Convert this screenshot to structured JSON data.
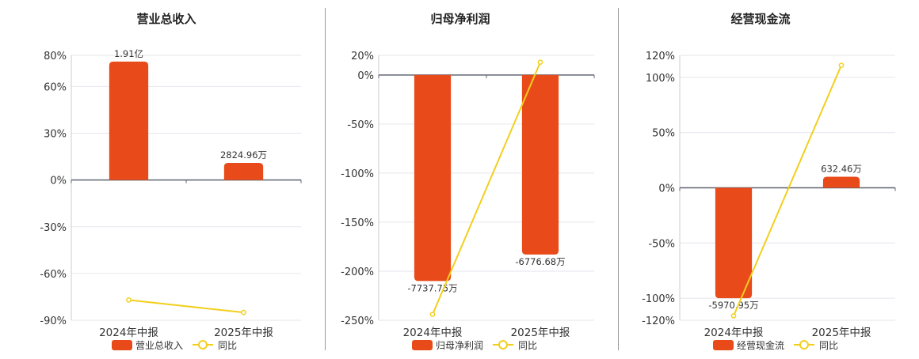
{
  "colors": {
    "bar": "#E84A1A",
    "line": "#F2CF1E",
    "axis": "#5F6470",
    "grid": "#E6E6EE",
    "text": "#333333",
    "divider": "#999999"
  },
  "chart_data": [
    {
      "type": "bar",
      "title": "营业总收入",
      "categories": [
        "2024年中报",
        "2025年中报"
      ],
      "yticks": [
        "80%",
        "60%",
        "30%",
        "0%",
        "-30%",
        "-60%",
        "-90%"
      ],
      "ylim": [
        -90,
        80
      ],
      "series": [
        {
          "name": "营业总收入",
          "type": "bar",
          "values": [
            76,
            11
          ],
          "labels": [
            "1.91亿",
            "2824.96万"
          ]
        },
        {
          "name": "同比",
          "type": "line",
          "values": [
            -77,
            -85
          ]
        }
      ],
      "legend": "bottom"
    },
    {
      "type": "bar",
      "title": "归母净利润",
      "categories": [
        "2024年中报",
        "2025年中报"
      ],
      "yticks": [
        "20%",
        "0%",
        "-50%",
        "-100%",
        "-150%",
        "-200%",
        "-250%"
      ],
      "ylim": [
        -250,
        20
      ],
      "series": [
        {
          "name": "归母净利润",
          "type": "bar",
          "values": [
            -210,
            -183
          ],
          "labels": [
            "-7737.75万",
            "-6776.68万"
          ]
        },
        {
          "name": "同比",
          "type": "line",
          "values": [
            -244,
            13
          ]
        }
      ],
      "legend": "bottom"
    },
    {
      "type": "bar",
      "title": "经营现金流",
      "categories": [
        "2024年中报",
        "2025年中报"
      ],
      "yticks": [
        "120%",
        "100%",
        "50%",
        "0%",
        "-50%",
        "-100%",
        "-120%"
      ],
      "ylim": [
        -120,
        120
      ],
      "series": [
        {
          "name": "经营现金流",
          "type": "bar",
          "values": [
            -100,
            10
          ],
          "labels": [
            "-5970.95万",
            "632.46万"
          ]
        },
        {
          "name": "同比",
          "type": "line",
          "values": [
            -116,
            111
          ]
        }
      ],
      "legend": "bottom"
    }
  ]
}
